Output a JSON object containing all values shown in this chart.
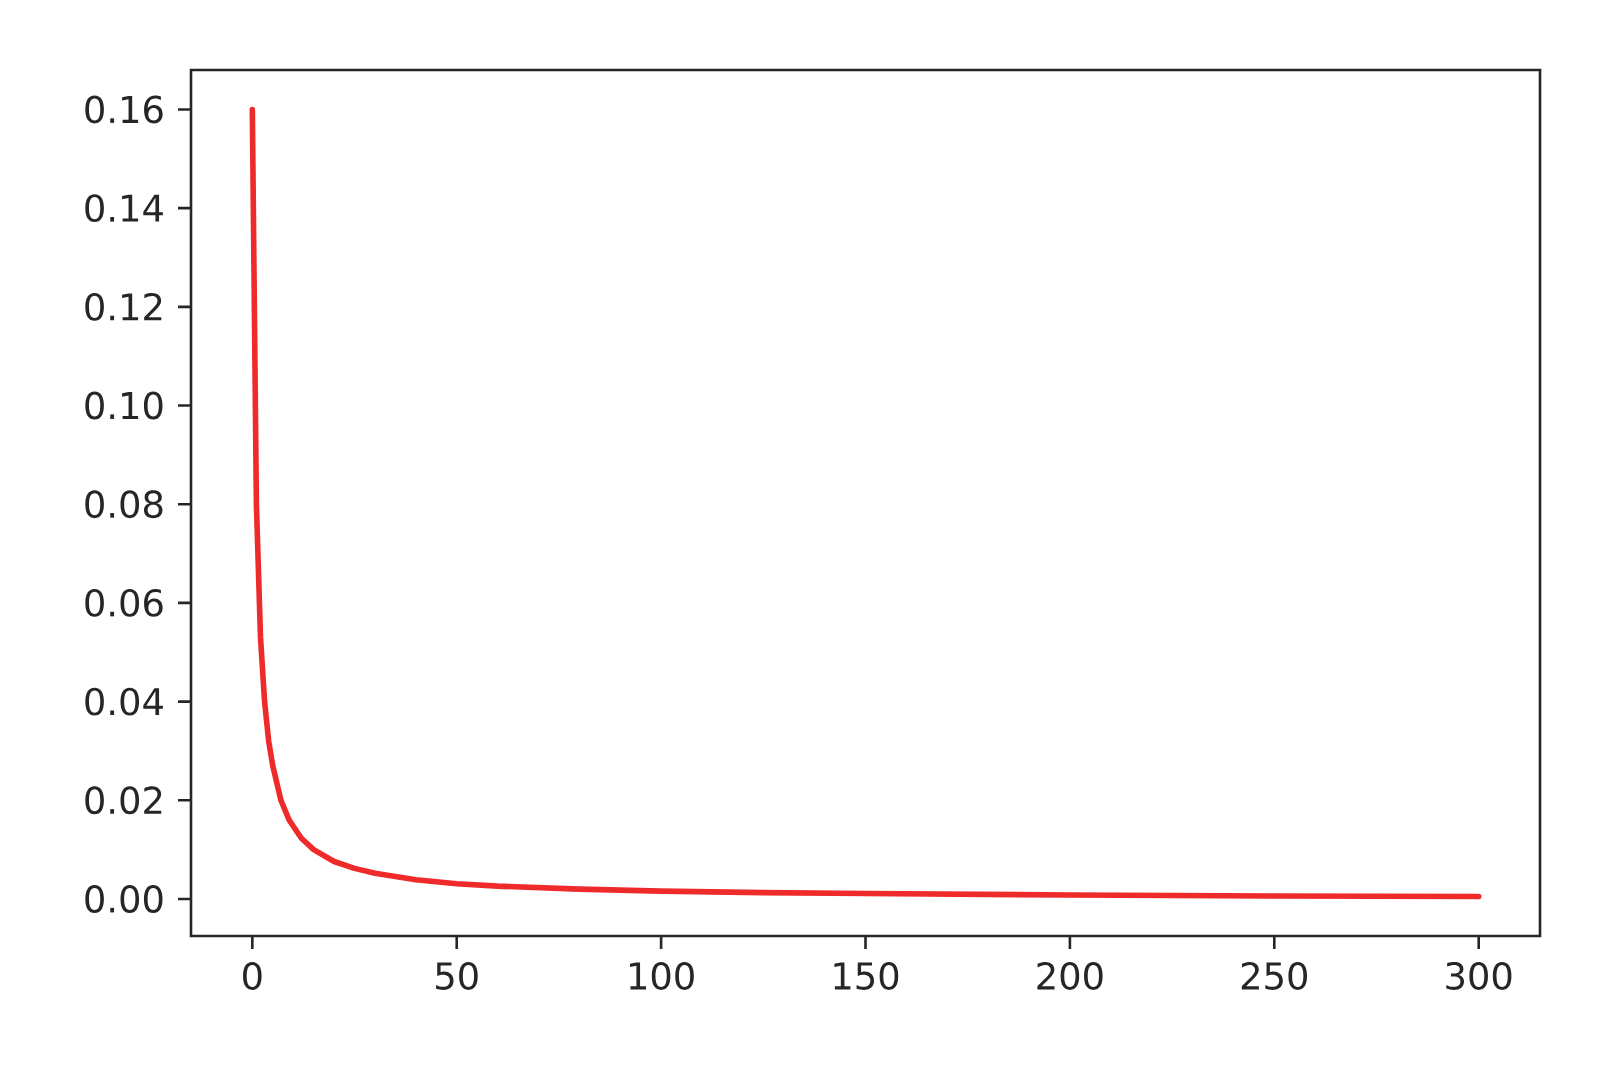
{
  "chart_data": {
    "type": "line",
    "x": [
      0,
      1,
      2,
      3,
      4,
      5,
      7,
      9,
      12,
      15,
      20,
      25,
      30,
      40,
      50,
      60,
      80,
      100,
      125,
      150,
      200,
      250,
      300
    ],
    "values": [
      0.16,
      0.08,
      0.053,
      0.04,
      0.032,
      0.027,
      0.02,
      0.016,
      0.0123,
      0.01,
      0.0076,
      0.0062,
      0.0052,
      0.0039,
      0.0031,
      0.0026,
      0.002,
      0.0016,
      0.0013,
      0.0011,
      0.0008,
      0.0006,
      0.0005
    ],
    "color": "#ee2a2a",
    "xlim": [
      -15,
      315
    ],
    "ylim": [
      -0.0075,
      0.168
    ],
    "xticks": [
      0,
      50,
      100,
      150,
      200,
      250,
      300
    ],
    "yticks": [
      {
        "value": 0,
        "label": "0.00"
      },
      {
        "value": 0.02,
        "label": "0.02"
      },
      {
        "value": 0.04,
        "label": "0.04"
      },
      {
        "value": 0.06,
        "label": "0.06"
      },
      {
        "value": 0.08,
        "label": "0.08"
      },
      {
        "value": 0.1,
        "label": "0.10"
      },
      {
        "value": 0.12,
        "label": "0.12"
      },
      {
        "value": 0.14,
        "label": "0.14"
      },
      {
        "value": 0.16,
        "label": "0.16"
      }
    ]
  }
}
